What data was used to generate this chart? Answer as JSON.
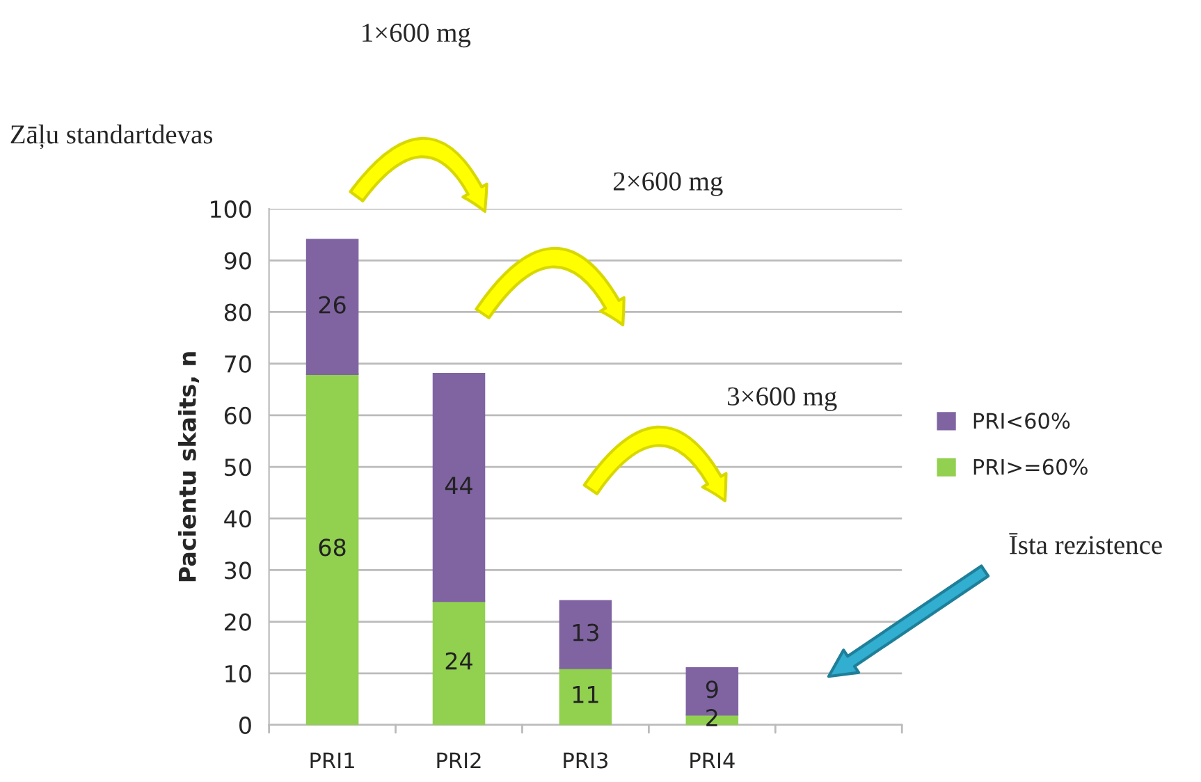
{
  "chart_data": {
    "type": "bar",
    "stacked": true,
    "ylabel": "Pacientu skaits, n",
    "categories": [
      "PRI1",
      "PRI2",
      "PRI3",
      "PRI4",
      null
    ],
    "series": [
      {
        "name": "PRI>=60%",
        "color": "#92d050",
        "values": [
          68,
          24,
          11,
          2,
          null
        ]
      },
      {
        "name": "PRI<60%",
        "color": "#8064a2",
        "values": [
          26,
          44,
          13,
          9,
          null
        ]
      }
    ],
    "ylim": [
      0,
      100
    ],
    "yticks": [
      0,
      10,
      20,
      30,
      40,
      50,
      60,
      70,
      80,
      90,
      100
    ],
    "grid": "y",
    "legend": "right",
    "data_labels": true,
    "annotations": [
      "1×600 mg",
      "Zāļu standartdevas",
      "2×600 mg",
      "3×600 mg",
      "Īsta rezistence"
    ]
  }
}
